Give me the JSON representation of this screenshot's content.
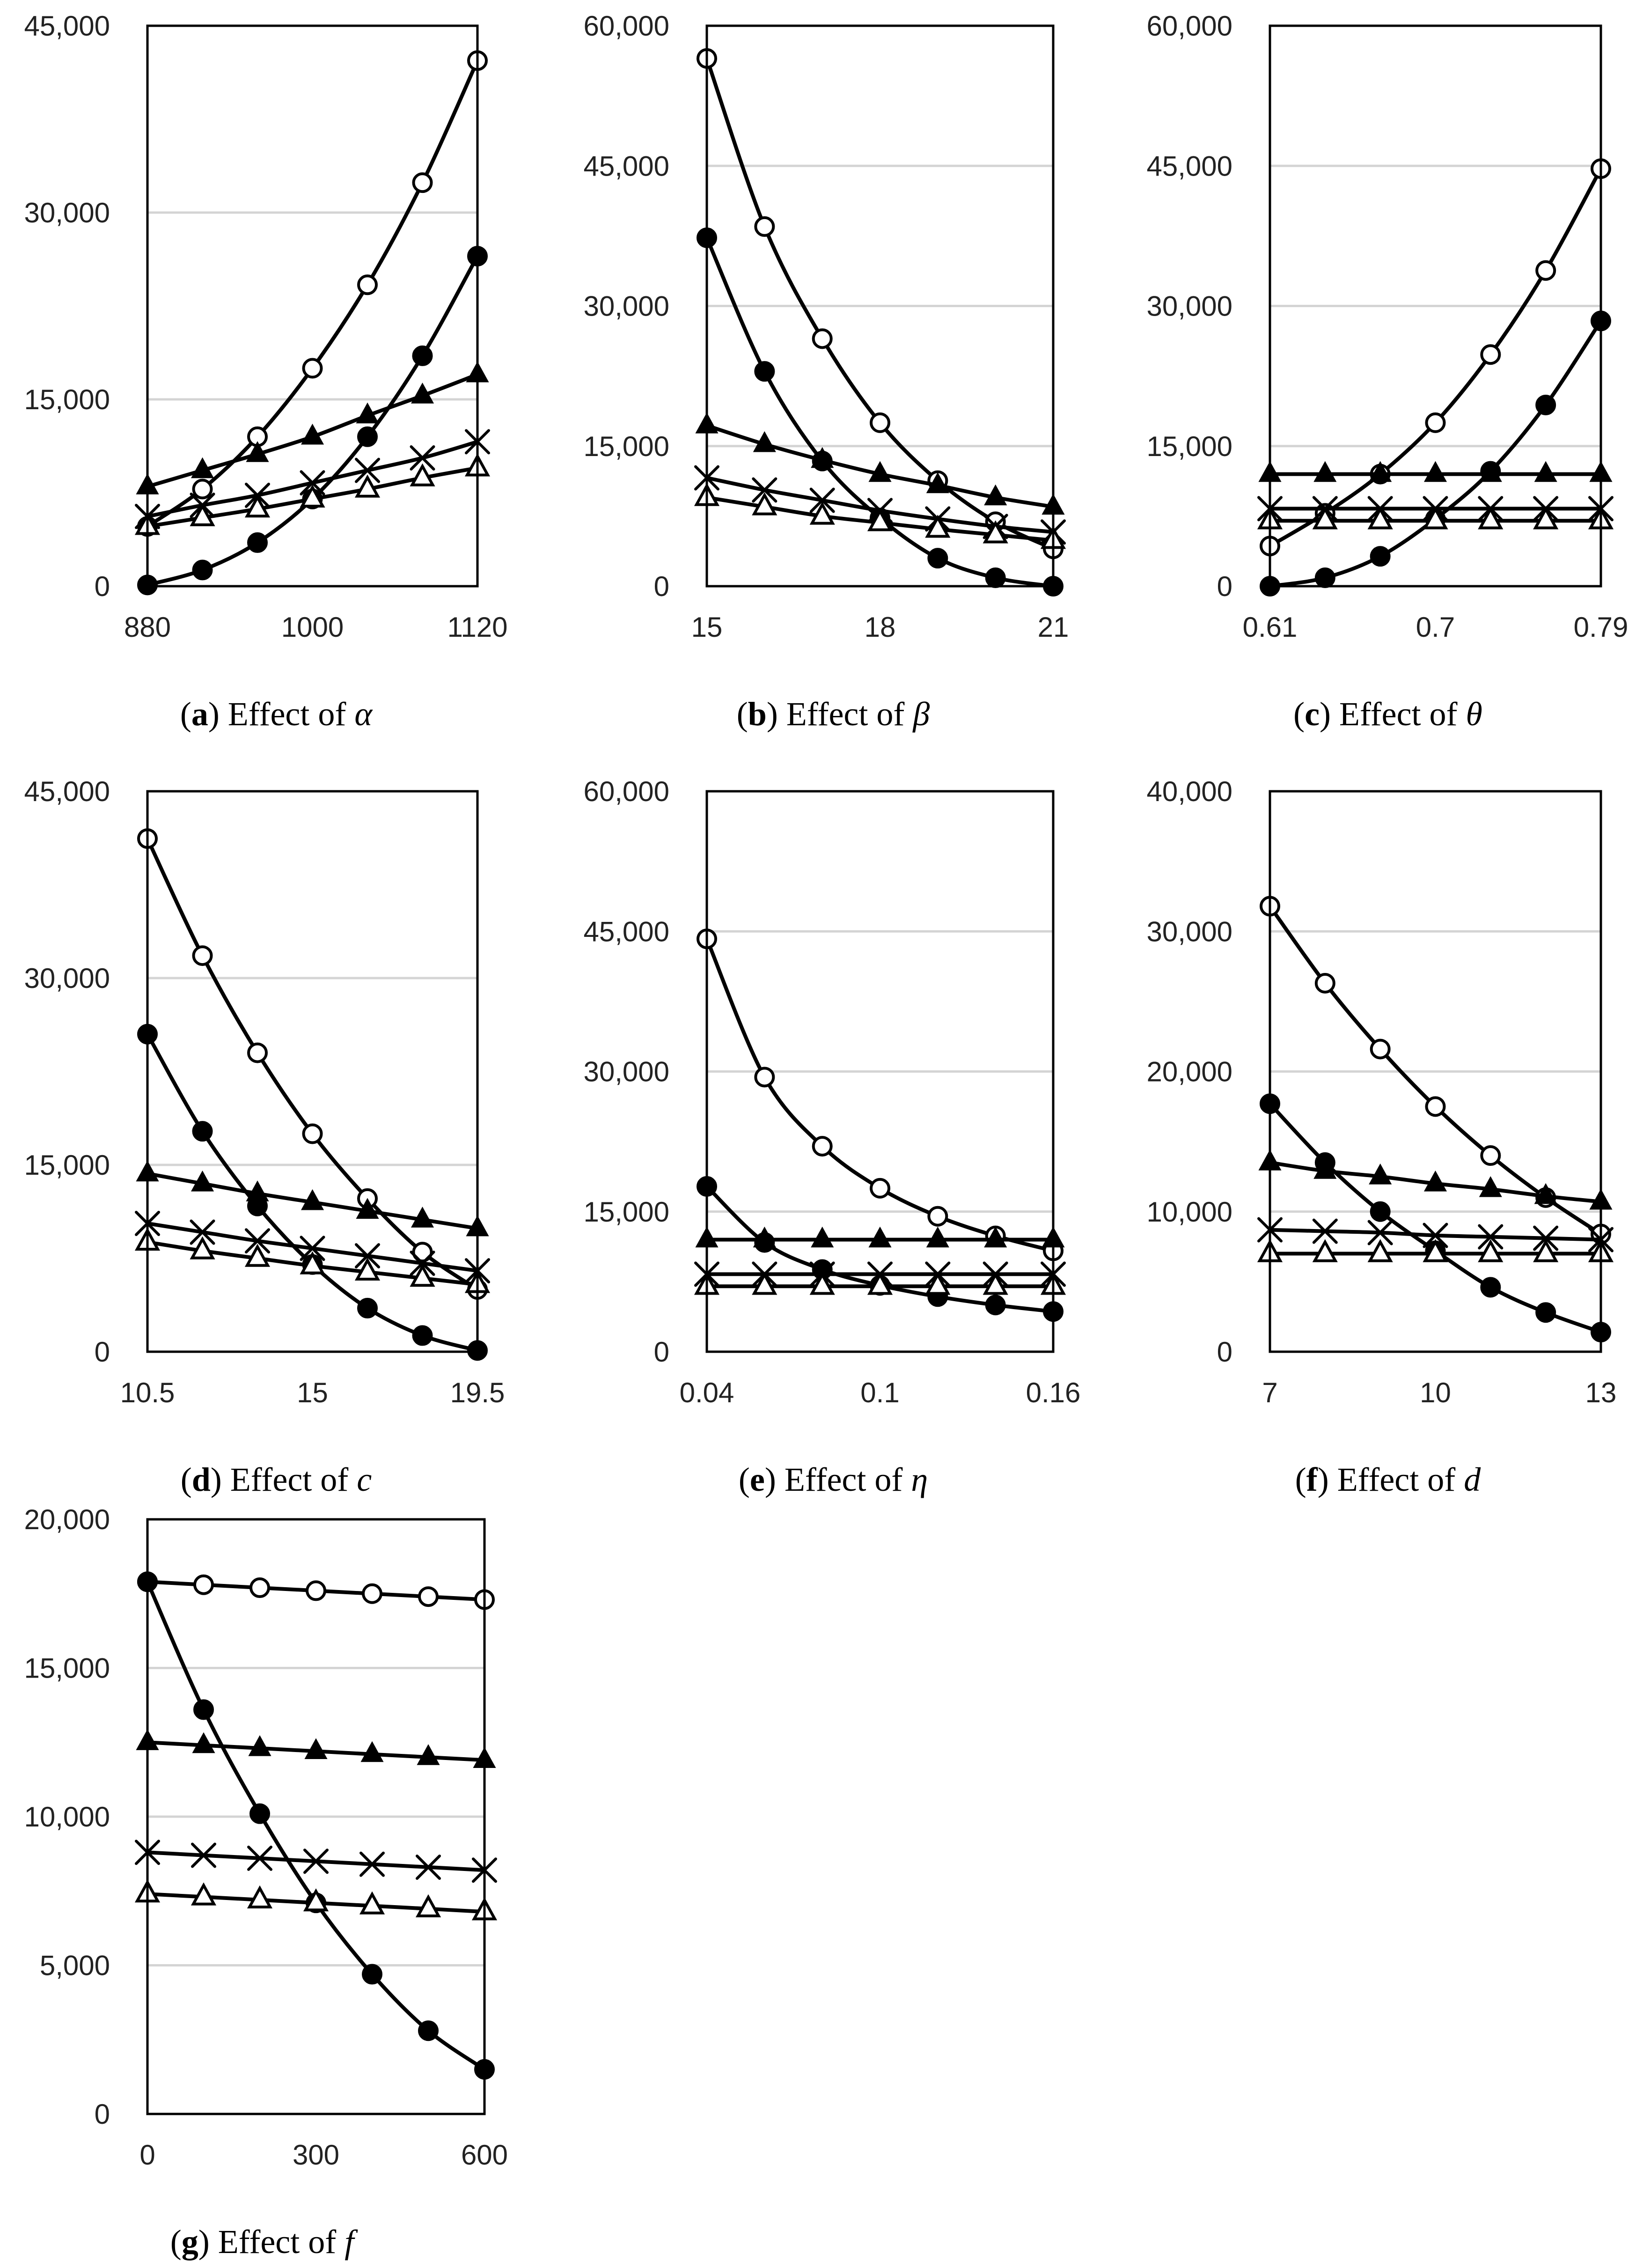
{
  "chart_data": [
    {
      "type": "line",
      "panel_letter": "a",
      "caption_text": "Effect of",
      "symbol": "α",
      "xmin": 880,
      "xmax": 1120,
      "ylim": [
        0,
        45000
      ],
      "x_ticks": [
        880,
        1000,
        1120
      ],
      "x_tick_labels": [
        "880",
        "1000",
        "1120"
      ],
      "y_ticks": [
        0,
        15000,
        30000,
        45000
      ],
      "y_tick_labels": [
        "0",
        "15,000",
        "30,000",
        "45,000"
      ],
      "x": [
        880,
        920,
        960,
        1000,
        1040,
        1080,
        1120
      ],
      "series": [
        {
          "marker": "open-circle",
          "values": [
            4800,
            7800,
            12000,
            17500,
            24200,
            32400,
            42200
          ]
        },
        {
          "marker": "filled-circle",
          "values": [
            100,
            1300,
            3500,
            7000,
            12000,
            18500,
            26500
          ]
        },
        {
          "marker": "filled-triangle",
          "values": [
            8000,
            9300,
            10600,
            12000,
            13700,
            15300,
            17000
          ]
        },
        {
          "marker": "cross",
          "values": [
            5600,
            6500,
            7300,
            8300,
            9300,
            10300,
            11600
          ]
        },
        {
          "marker": "open-triangle",
          "values": [
            4800,
            5500,
            6200,
            7000,
            7800,
            8700,
            9500
          ]
        }
      ]
    },
    {
      "type": "line",
      "panel_letter": "b",
      "caption_text": "Effect of",
      "symbol": "β",
      "xmin": 15,
      "xmax": 21,
      "ylim": [
        0,
        60000
      ],
      "x_ticks": [
        15,
        18,
        21
      ],
      "x_tick_labels": [
        "15",
        "18",
        "21"
      ],
      "y_ticks": [
        0,
        15000,
        30000,
        45000,
        60000
      ],
      "y_tick_labels": [
        "0",
        "15,000",
        "30,000",
        "45,000",
        "60,000"
      ],
      "x": [
        15,
        16,
        17,
        18,
        19,
        20,
        21
      ],
      "series": [
        {
          "marker": "open-circle",
          "values": [
            56500,
            38500,
            26500,
            17500,
            11300,
            6900,
            4000
          ]
        },
        {
          "marker": "filled-circle",
          "values": [
            37300,
            23000,
            13400,
            7300,
            3000,
            900,
            0
          ]
        },
        {
          "marker": "filled-triangle",
          "values": [
            17200,
            15200,
            13500,
            12000,
            10800,
            9500,
            8500
          ]
        },
        {
          "marker": "cross",
          "values": [
            11600,
            10300,
            9200,
            8100,
            7200,
            6400,
            5800
          ]
        },
        {
          "marker": "open-triangle",
          "values": [
            9500,
            8500,
            7500,
            6800,
            6100,
            5500,
            4900
          ]
        }
      ]
    },
    {
      "type": "line",
      "panel_letter": "c",
      "caption_text": "Effect of",
      "symbol": "θ",
      "xmin": 0.61,
      "xmax": 0.79,
      "ylim": [
        0,
        60000
      ],
      "x_ticks": [
        0.61,
        0.7,
        0.79
      ],
      "x_tick_labels": [
        "0.61",
        "0.7",
        "0.79"
      ],
      "y_ticks": [
        0,
        15000,
        30000,
        45000,
        60000
      ],
      "y_tick_labels": [
        "0",
        "15,000",
        "30,000",
        "45,000",
        "60,000"
      ],
      "x": [
        0.61,
        0.64,
        0.67,
        0.7,
        0.73,
        0.76,
        0.79
      ],
      "series": [
        {
          "marker": "open-circle",
          "values": [
            4300,
            7800,
            12000,
            17500,
            24800,
            33800,
            44700
          ]
        },
        {
          "marker": "filled-circle",
          "values": [
            0,
            900,
            3200,
            7200,
            12300,
            19400,
            28400
          ]
        },
        {
          "marker": "filled-triangle",
          "values": [
            12000,
            12000,
            12000,
            12000,
            12000,
            12000,
            12000
          ]
        },
        {
          "marker": "cross",
          "values": [
            8300,
            8300,
            8300,
            8300,
            8300,
            8300,
            8300
          ]
        },
        {
          "marker": "open-triangle",
          "values": [
            7000,
            7000,
            7000,
            7000,
            7000,
            7000,
            7000
          ]
        }
      ]
    },
    {
      "type": "line",
      "panel_letter": "d",
      "caption_text": "Effect of",
      "symbol": "c",
      "xmin": 10.5,
      "xmax": 19.5,
      "ylim": [
        0,
        45000
      ],
      "x_ticks": [
        10.5,
        15,
        19.5
      ],
      "x_tick_labels": [
        "10.5",
        "15",
        "19.5"
      ],
      "y_ticks": [
        0,
        15000,
        30000,
        45000
      ],
      "y_tick_labels": [
        "0",
        "15,000",
        "30,000",
        "45,000"
      ],
      "x": [
        10.5,
        12,
        13.5,
        15,
        16.5,
        18,
        19.5
      ],
      "series": [
        {
          "marker": "open-circle",
          "values": [
            41200,
            31800,
            24000,
            17500,
            12300,
            8000,
            5000
          ]
        },
        {
          "marker": "filled-circle",
          "values": [
            25500,
            17700,
            11700,
            7000,
            3500,
            1300,
            100
          ]
        },
        {
          "marker": "filled-triangle",
          "values": [
            14300,
            13500,
            12700,
            12000,
            11300,
            10600,
            9900
          ]
        },
        {
          "marker": "cross",
          "values": [
            10300,
            9600,
            8900,
            8300,
            7700,
            7100,
            6500
          ]
        },
        {
          "marker": "open-triangle",
          "values": [
            8800,
            8100,
            7500,
            6900,
            6400,
            5900,
            5400
          ]
        }
      ]
    },
    {
      "type": "line",
      "panel_letter": "e",
      "caption_text": "Effect of",
      "symbol": "η",
      "xmin": 0.04,
      "xmax": 0.16,
      "ylim": [
        0,
        60000
      ],
      "x_ticks": [
        0.04,
        0.1,
        0.16
      ],
      "x_tick_labels": [
        "0.04",
        "0.1",
        "0.16"
      ],
      "y_ticks": [
        0,
        15000,
        30000,
        45000,
        60000
      ],
      "y_tick_labels": [
        "0",
        "15,000",
        "30,000",
        "45,000",
        "60,000"
      ],
      "x": [
        0.04,
        0.06,
        0.08,
        0.1,
        0.12,
        0.14,
        0.16
      ],
      "series": [
        {
          "marker": "open-circle",
          "values": [
            44200,
            29400,
            22000,
            17500,
            14500,
            12400,
            10800
          ]
        },
        {
          "marker": "filled-circle",
          "values": [
            17700,
            11700,
            8800,
            7100,
            5900,
            5000,
            4300
          ]
        },
        {
          "marker": "filled-triangle",
          "values": [
            12000,
            12000,
            12000,
            12000,
            12000,
            12000,
            12000
          ]
        },
        {
          "marker": "cross",
          "values": [
            8300,
            8300,
            8300,
            8300,
            8300,
            8300,
            8300
          ]
        },
        {
          "marker": "open-triangle",
          "values": [
            7000,
            7000,
            7000,
            7000,
            7000,
            7000,
            7000
          ]
        }
      ]
    },
    {
      "type": "line",
      "panel_letter": "f",
      "caption_text": "Effect of",
      "symbol": "d",
      "xmin": 7,
      "xmax": 13,
      "ylim": [
        0,
        40000
      ],
      "x_ticks": [
        7,
        10,
        13
      ],
      "x_tick_labels": [
        "7",
        "10",
        "13"
      ],
      "y_ticks": [
        0,
        10000,
        20000,
        30000,
        40000
      ],
      "y_tick_labels": [
        "0",
        "10,000",
        "20,000",
        "30,000",
        "40,000"
      ],
      "x": [
        7,
        8,
        9,
        10,
        11,
        12,
        13
      ],
      "series": [
        {
          "marker": "open-circle",
          "values": [
            31800,
            26300,
            21600,
            17500,
            14000,
            11000,
            8400
          ]
        },
        {
          "marker": "filled-circle",
          "values": [
            17700,
            13500,
            10000,
            7200,
            4600,
            2800,
            1400
          ]
        },
        {
          "marker": "filled-triangle",
          "values": [
            13500,
            12900,
            12500,
            12000,
            11600,
            11100,
            10700
          ]
        },
        {
          "marker": "cross",
          "values": [
            8700,
            8600,
            8500,
            8300,
            8200,
            8100,
            8000
          ]
        },
        {
          "marker": "open-triangle",
          "values": [
            7000,
            7000,
            7000,
            7000,
            7000,
            7000,
            7000
          ]
        }
      ]
    },
    {
      "type": "line",
      "panel_letter": "g",
      "caption_text": "Effect of",
      "symbol": "f",
      "xmin": 0,
      "xmax": 600,
      "ylim": [
        0,
        20000
      ],
      "x_ticks": [
        0,
        300,
        600
      ],
      "x_tick_labels": [
        "0",
        "300",
        "600"
      ],
      "y_ticks": [
        0,
        5000,
        10000,
        15000,
        20000
      ],
      "y_tick_labels": [
        "0",
        "5,000",
        "10,000",
        "15,000",
        "20,000"
      ],
      "x": [
        0,
        100,
        200,
        300,
        400,
        500,
        600
      ],
      "series": [
        {
          "marker": "open-circle",
          "values": [
            17900,
            17800,
            17700,
            17600,
            17500,
            17400,
            17300
          ]
        },
        {
          "marker": "filled-circle",
          "values": [
            17900,
            13600,
            10100,
            7100,
            4700,
            2800,
            1500
          ]
        },
        {
          "marker": "filled-triangle",
          "values": [
            12500,
            12400,
            12300,
            12200,
            12100,
            12000,
            11900
          ]
        },
        {
          "marker": "cross",
          "values": [
            8800,
            8700,
            8600,
            8500,
            8400,
            8300,
            8200
          ]
        },
        {
          "marker": "open-triangle",
          "values": [
            7400,
            7300,
            7200,
            7100,
            7000,
            6900,
            6800
          ]
        }
      ]
    }
  ]
}
